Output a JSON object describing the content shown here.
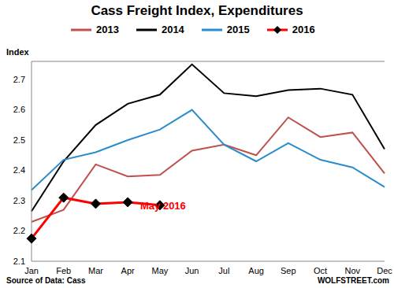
{
  "chart_data": {
    "type": "line",
    "title": "Cass Freight Index, Expenditures",
    "y_label": "Index",
    "categories": [
      "Jan",
      "Feb",
      "Mar",
      "Apr",
      "May",
      "Jun",
      "Jul",
      "Aug",
      "Sep",
      "Oct",
      "Nov",
      "Dec"
    ],
    "series": [
      {
        "name": "2013",
        "color": "#c0504d",
        "marker": "none",
        "line_style": "solid",
        "values": [
          2.23,
          2.27,
          2.42,
          2.38,
          2.385,
          2.465,
          2.485,
          2.45,
          2.575,
          2.51,
          2.525,
          2.39
        ]
      },
      {
        "name": "2014",
        "color": "#000000",
        "marker": "none",
        "line_style": "solid",
        "values": [
          2.265,
          2.43,
          2.55,
          2.62,
          2.65,
          2.75,
          2.655,
          2.645,
          2.665,
          2.67,
          2.65,
          2.47
        ]
      },
      {
        "name": "2015",
        "color": "#2b8ccc",
        "marker": "none",
        "line_style": "solid",
        "values": [
          2.335,
          2.435,
          2.46,
          2.5,
          2.535,
          2.6,
          2.485,
          2.43,
          2.49,
          2.435,
          2.41,
          2.345
        ]
      },
      {
        "name": "2016",
        "color": "#ff0000",
        "marker": "diamond",
        "line_style": "solid",
        "values": [
          2.175,
          2.31,
          2.29,
          2.295,
          2.285,
          null,
          null,
          null,
          null,
          null,
          null,
          null
        ]
      }
    ],
    "ylim": [
      2.1,
      2.76
    ],
    "yticks": [
      2.1,
      2.2,
      2.3,
      2.4,
      2.5,
      2.6,
      2.7
    ],
    "grid": false,
    "legend": "top",
    "annotation": {
      "text": "May 2016",
      "color": "#ff0000"
    },
    "source": "Source of Data: Cass",
    "credit": "WOLFSTREET.com"
  }
}
